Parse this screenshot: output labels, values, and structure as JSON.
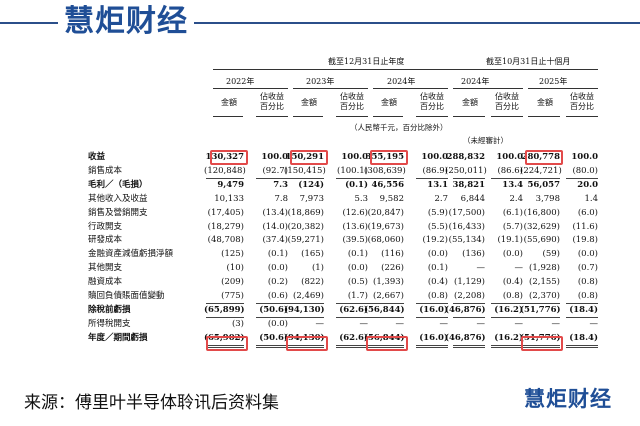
{
  "brand": {
    "name": "慧炬财经"
  },
  "header": {
    "year_end_period": "截至12月31日止年度",
    "oct_period": "截至10月31日止十個月",
    "years": [
      "2022年",
      "2023年",
      "2024年",
      "2024年",
      "2025年"
    ],
    "amount_label": "金額",
    "pct_label_1": "佔收益",
    "pct_label_2": "百分比",
    "unit_note": "（人民幣千元，百分比除外）",
    "unaudited": "（未經審計）"
  },
  "rows": [
    {
      "label": "收益",
      "bold": true,
      "values": [
        "130,327",
        "100.0",
        "150,291",
        "100.0",
        "355,195",
        "100.0",
        "288,832",
        "100.0",
        "280,778",
        "100.0"
      ]
    },
    {
      "label": "銷售成本",
      "bold": false,
      "values": [
        "(120,848)",
        "(92.7)",
        "(150,415)",
        "(100.1)",
        "(308,639)",
        "(86.9)",
        "(250,011)",
        "(86.6)",
        "(224,721)",
        "(80.0)"
      ]
    },
    {
      "label": "毛利／（毛損）",
      "bold": true,
      "values": [
        "9,479",
        "7.3",
        "(124)",
        "(0.1)",
        "46,556",
        "13.1",
        "38,821",
        "13.4",
        "56,057",
        "20.0"
      ]
    },
    {
      "label": "其他收入及收益",
      "bold": false,
      "values": [
        "10,133",
        "7.8",
        "7,973",
        "5.3",
        "9,582",
        "2.7",
        "6,844",
        "2.4",
        "3,798",
        "1.4"
      ]
    },
    {
      "label": "銷售及營銷開支",
      "bold": false,
      "values": [
        "(17,405)",
        "(13.4)",
        "(18,869)",
        "(12.6)",
        "(20,847)",
        "(5.9)",
        "(17,500)",
        "(6.1)",
        "(16,800)",
        "(6.0)"
      ]
    },
    {
      "label": "行政開支",
      "bold": false,
      "values": [
        "(18,279)",
        "(14.0)",
        "(20,382)",
        "(13.6)",
        "(19,673)",
        "(5.5)",
        "(16,433)",
        "(5.7)",
        "(32,629)",
        "(11.6)"
      ]
    },
    {
      "label": "研發成本",
      "bold": false,
      "values": [
        "(48,708)",
        "(37.4)",
        "(59,271)",
        "(39.5)",
        "(68,060)",
        "(19.2)",
        "(55,134)",
        "(19.1)",
        "(55,690)",
        "(19.8)"
      ]
    },
    {
      "label": "金融資產減值虧損淨額",
      "bold": false,
      "values": [
        "(125)",
        "(0.1)",
        "(165)",
        "(0.1)",
        "(116)",
        "(0.0)",
        "(136)",
        "(0.0)",
        "(59)",
        "(0.0)"
      ]
    },
    {
      "label": "其他開支",
      "bold": false,
      "values": [
        "(10)",
        "(0.0)",
        "(1)",
        "(0.0)",
        "(226)",
        "(0.1)",
        "—",
        "—",
        "(1,928)",
        "(0.7)"
      ]
    },
    {
      "label": "融資成本",
      "bold": false,
      "values": [
        "(209)",
        "(0.2)",
        "(822)",
        "(0.5)",
        "(1,393)",
        "(0.4)",
        "(1,129)",
        "(0.4)",
        "(2,155)",
        "(0.8)"
      ]
    },
    {
      "label": "贖回負債賬面值變動",
      "bold": false,
      "values": [
        "(775)",
        "(0.6)",
        "(2,469)",
        "(1.7)",
        "(2,667)",
        "(0.8)",
        "(2,208)",
        "(0.8)",
        "(2,370)",
        "(0.8)"
      ]
    },
    {
      "label": "除稅前虧損",
      "bold": true,
      "values": [
        "(65,899)",
        "(50.6)",
        "(94,130)",
        "(62.6)",
        "(56,844)",
        "(16.0)",
        "(46,876)",
        "(16.2)",
        "(51,776)",
        "(18.4)"
      ]
    },
    {
      "label": "所得稅開支",
      "bold": false,
      "values": [
        "(3)",
        "(0.0)",
        "—",
        "—",
        "—",
        "—",
        "—",
        "—",
        "—",
        "—"
      ]
    },
    {
      "label": "年度／期間虧損",
      "bold": true,
      "values": [
        "(65,902)",
        "(50.6)",
        "(94,130)",
        "(62.6)",
        "(56,844)",
        "(16.0)",
        "(46,876)",
        "(16.2)",
        "(51,776)",
        "(18.4)"
      ]
    }
  ],
  "source": "来源：傅里叶半导体聆讯后资料集"
}
